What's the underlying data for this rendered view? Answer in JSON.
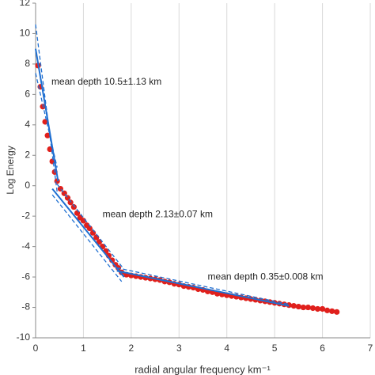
{
  "chart_data": {
    "type": "scatter",
    "x_label": "radial angular frequency km⁻¹",
    "y_label": "Log Energy",
    "xlim": [
      0,
      7
    ],
    "ylim": [
      -10,
      12
    ],
    "xticks": [
      0,
      1,
      2,
      3,
      4,
      5,
      6,
      7
    ],
    "yticks": [
      -10,
      -8,
      -6,
      -4,
      -2,
      0,
      2,
      4,
      6,
      8,
      10,
      12
    ],
    "grid": "x",
    "color": "#e0201c",
    "x": [
      0.05,
      0.1,
      0.15,
      0.2,
      0.25,
      0.3,
      0.35,
      0.4,
      0.45,
      0.52,
      0.6,
      0.67,
      0.73,
      0.8,
      0.87,
      0.93,
      1.0,
      1.07,
      1.13,
      1.2,
      1.27,
      1.33,
      1.4,
      1.47,
      1.53,
      1.6,
      1.67,
      1.73,
      1.8,
      1.9,
      2.0,
      2.1,
      2.2,
      2.3,
      2.4,
      2.5,
      2.6,
      2.7,
      2.8,
      2.9,
      3.0,
      3.1,
      3.2,
      3.3,
      3.4,
      3.5,
      3.6,
      3.7,
      3.8,
      3.9,
      4.0,
      4.1,
      4.2,
      4.3,
      4.4,
      4.5,
      4.6,
      4.7,
      4.8,
      4.9,
      5.0,
      5.1,
      5.2,
      5.3,
      5.4,
      5.5,
      5.6,
      5.7,
      5.8,
      5.9,
      6.0,
      6.1,
      6.2,
      6.3
    ],
    "values": [
      7.9,
      6.5,
      5.2,
      4.2,
      3.3,
      2.4,
      1.6,
      0.9,
      0.3,
      -0.2,
      -0.5,
      -0.8,
      -1.1,
      -1.4,
      -1.8,
      -2.1,
      -2.3,
      -2.6,
      -2.8,
      -3.1,
      -3.4,
      -3.7,
      -4.0,
      -4.3,
      -4.6,
      -4.9,
      -5.2,
      -5.4,
      -5.7,
      -5.85,
      -5.9,
      -5.95,
      -6.0,
      -6.05,
      -6.1,
      -6.15,
      -6.2,
      -6.3,
      -6.35,
      -6.45,
      -6.5,
      -6.6,
      -6.65,
      -6.7,
      -6.8,
      -6.85,
      -6.95,
      -7.0,
      -7.1,
      -7.15,
      -7.2,
      -7.25,
      -7.3,
      -7.35,
      -7.4,
      -7.45,
      -7.5,
      -7.55,
      -7.6,
      -7.65,
      -7.7,
      -7.75,
      -7.8,
      -7.85,
      -7.9,
      -7.95,
      -8.0,
      -8.0,
      -8.05,
      -8.1,
      -8.1,
      -8.2,
      -8.25,
      -8.3
    ],
    "fit_color": "#1f6fd1",
    "fit_lines": [
      {
        "x": [
          0,
          0.47
        ],
        "values": [
          9.0,
          0.3
        ],
        "style": "solid"
      },
      {
        "x": [
          0,
          0.45
        ],
        "values": [
          10.6,
          -0.4
        ],
        "style": "dashed"
      },
      {
        "x": [
          0,
          0.45
        ],
        "values": [
          7.4,
          1.2
        ],
        "style": "dashed"
      },
      {
        "x": [
          0.35,
          1.85
        ],
        "values": [
          -0.2,
          -6.0
        ],
        "style": "solid"
      },
      {
        "x": [
          0.35,
          1.8
        ],
        "values": [
          -0.6,
          -6.3
        ],
        "style": "dashed"
      },
      {
        "x": [
          0.45,
          1.85
        ],
        "values": [
          0.1,
          -5.5
        ],
        "style": "dashed"
      },
      {
        "x": [
          1.7,
          5.3
        ],
        "values": [
          -5.6,
          -7.9
        ],
        "style": "solid"
      },
      {
        "x": [
          1.7,
          5.3
        ],
        "values": [
          -5.4,
          -7.8
        ],
        "style": "dashed"
      }
    ],
    "annotations": [
      {
        "text": "mean depth 10.5±1.13 km",
        "x": 0.33,
        "y": 6.8
      },
      {
        "text": "mean depth 2.13±0.07 km",
        "x": 1.4,
        "y": -1.9
      },
      {
        "text": "mean depth 0.35±0.008 km",
        "x": 3.6,
        "y": -6.0
      }
    ]
  }
}
